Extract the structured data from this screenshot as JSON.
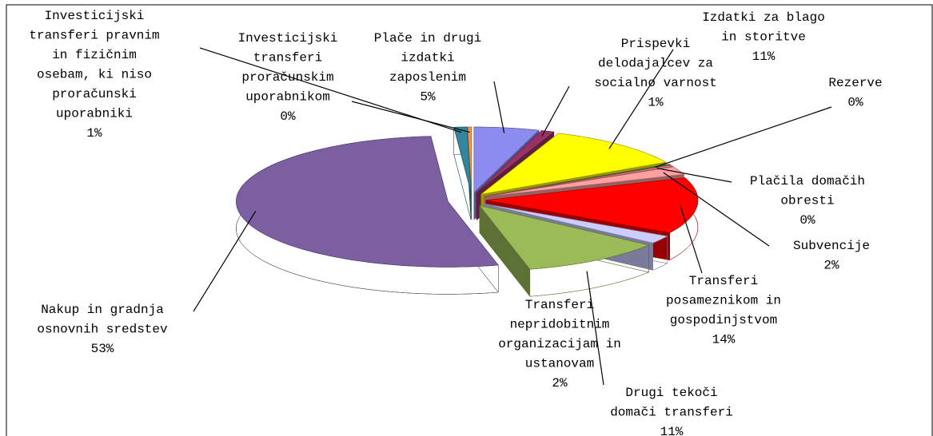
{
  "chart_data": {
    "type": "pie",
    "categories": [
      [
        "Plače in drugi",
        "izdatki",
        "zaposlenim"
      ],
      [
        "Prispevki",
        "delodajalcev za",
        "socialno varnost"
      ],
      [
        "Izdatki za blago",
        "in storitve"
      ],
      [
        "Rezerve"
      ],
      [
        "Plačila domačih",
        "obresti"
      ],
      [
        "Subvencije"
      ],
      [
        "Transferi",
        "posameznikom in",
        "gospodinjstvom"
      ],
      [
        "Transferi",
        "nepridobitnim",
        "organizacijam in",
        "ustanovam"
      ],
      [
        "Drugi tekoči",
        "domači transferi"
      ],
      [
        "Nakup in gradnja",
        "osnovnih sredstev"
      ],
      [
        "Investicijski",
        "transferi pravnim",
        "in fizičnim",
        "osebam, ki niso",
        "proračunski",
        "uporabniki"
      ],
      [
        "Investicijski",
        "transferi",
        "proračunskim",
        "uporabnikom"
      ]
    ],
    "values": [
      5,
      1,
      11,
      0.3,
      0.3,
      2,
      14,
      2,
      11,
      53,
      1,
      0.3
    ],
    "value_labels": [
      "5%",
      "1%",
      "11%",
      "0%",
      "0%",
      "2%",
      "14%",
      "2%",
      "11%",
      "53%",
      "1%",
      "0%"
    ],
    "colors": [
      "#8c8cf0",
      "#993366",
      "#ffff00",
      "#557755",
      "#ff8080",
      "#ffa0a0",
      "#ff0000",
      "#ccccff",
      "#9bbb59",
      "#7b5fa0",
      "#31859c",
      "#f79646"
    ]
  }
}
